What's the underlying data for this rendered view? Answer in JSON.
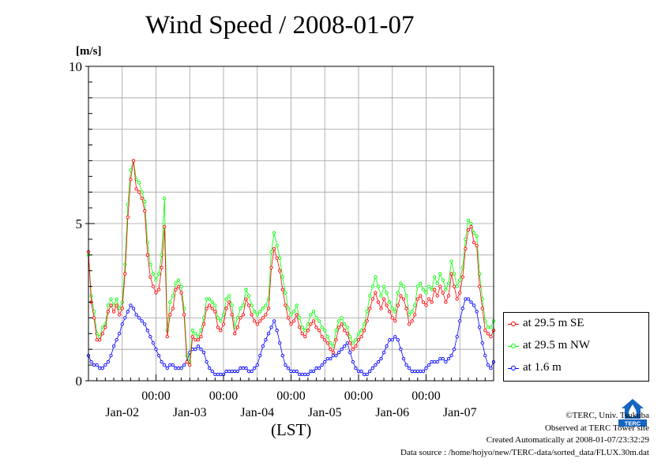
{
  "chart_data": {
    "type": "line",
    "title": "Wind Speed / 2008-01-07",
    "ylabel": "[m/s]",
    "xlabel": "(LST)",
    "ylim": [
      0,
      10
    ],
    "ytick_labels": [
      "0",
      "5",
      "10"
    ],
    "x_range_hours": [
      0,
      144
    ],
    "time_tick_labels": [
      "00:00",
      "00:00",
      "00:00",
      "00:00",
      "00:00"
    ],
    "date_labels": [
      "Jan-02",
      "Jan-03",
      "Jan-04",
      "Jan-05",
      "Jan-06",
      "Jan-07"
    ],
    "grid": true,
    "legend_position": "right",
    "series": [
      {
        "name": "at 29.5 m SE",
        "color": "#ff0000",
        "values": [
          4.1,
          2.5,
          2.0,
          1.3,
          1.3,
          1.5,
          1.7,
          2.2,
          2.4,
          2.2,
          2.4,
          2.1,
          2.3,
          3.4,
          5.2,
          6.4,
          7.0,
          6.1,
          6.0,
          5.8,
          5.4,
          4.0,
          3.3,
          3.0,
          2.8,
          2.9,
          3.6,
          4.9,
          1.4,
          2.1,
          2.3,
          2.9,
          3.0,
          2.8,
          2.1,
          0.6,
          0.5,
          1.4,
          1.3,
          1.3,
          1.4,
          1.8,
          2.3,
          2.4,
          2.3,
          2.2,
          1.7,
          1.6,
          1.8,
          2.3,
          2.5,
          2.1,
          1.5,
          1.7,
          2.0,
          2.1,
          2.6,
          2.4,
          2.1,
          1.9,
          1.8,
          1.9,
          2.0,
          2.1,
          2.3,
          3.6,
          4.2,
          3.9,
          3.5,
          2.9,
          2.4,
          2.0,
          1.8,
          1.9,
          2.1,
          1.7,
          1.5,
          1.4,
          1.6,
          1.8,
          1.9,
          1.7,
          1.6,
          1.4,
          1.3,
          1.2,
          1.0,
          0.9,
          1.3,
          1.7,
          1.8,
          1.6,
          1.5,
          1.2,
          1.0,
          1.1,
          1.3,
          1.4,
          1.6,
          1.9,
          2.3,
          2.6,
          2.8,
          2.5,
          2.3,
          2.6,
          2.4,
          2.2,
          2.0,
          1.9,
          2.4,
          2.7,
          2.6,
          2.3,
          1.8,
          1.9,
          2.1,
          2.6,
          2.7,
          2.5,
          2.4,
          2.6,
          2.5,
          2.9,
          2.7,
          3.0,
          2.8,
          2.5,
          2.7,
          3.4,
          3.0,
          2.6,
          2.8,
          3.3,
          4.2,
          4.8,
          4.9,
          4.4,
          4.3,
          3.0,
          2.3,
          1.6,
          1.5,
          1.4,
          1.6
        ]
      },
      {
        "name": "at 29.5 m NW",
        "color": "#00ff00",
        "values": [
          4.0,
          2.7,
          2.2,
          1.5,
          1.4,
          1.7,
          1.8,
          2.4,
          2.6,
          2.4,
          2.6,
          2.3,
          2.5,
          3.7,
          5.6,
          6.7,
          7.0,
          6.4,
          6.3,
          6.0,
          5.7,
          4.4,
          3.7,
          3.4,
          3.2,
          3.4,
          4.0,
          5.8,
          1.6,
          2.5,
          2.7,
          3.1,
          3.2,
          3.0,
          2.3,
          0.8,
          0.6,
          1.6,
          1.5,
          1.4,
          1.6,
          2.0,
          2.6,
          2.6,
          2.5,
          2.4,
          2.0,
          1.9,
          2.1,
          2.6,
          2.7,
          2.4,
          1.7,
          2.0,
          2.3,
          2.4,
          2.9,
          2.7,
          2.4,
          2.2,
          2.1,
          2.2,
          2.3,
          2.4,
          2.6,
          4.1,
          4.7,
          4.3,
          3.9,
          3.3,
          2.8,
          2.3,
          2.1,
          2.2,
          2.4,
          2.0,
          1.7,
          1.6,
          1.8,
          2.1,
          2.2,
          2.0,
          1.9,
          1.7,
          1.6,
          1.4,
          1.2,
          1.1,
          1.6,
          1.9,
          2.0,
          1.8,
          1.7,
          1.4,
          1.2,
          1.3,
          1.5,
          1.6,
          1.8,
          2.2,
          2.7,
          3.0,
          3.3,
          3.0,
          2.7,
          3.0,
          2.8,
          2.5,
          2.3,
          2.2,
          2.8,
          3.1,
          3.0,
          2.7,
          2.1,
          2.2,
          2.4,
          3.0,
          3.1,
          2.9,
          2.8,
          3.0,
          2.9,
          3.3,
          3.1,
          3.4,
          3.2,
          2.9,
          3.1,
          3.8,
          3.4,
          3.0,
          3.2,
          3.6,
          4.5,
          5.1,
          5.0,
          4.7,
          4.6,
          3.4,
          2.6,
          1.9,
          1.7,
          1.7,
          1.9
        ]
      },
      {
        "name": "at 1.6 m",
        "color": "#0000ff",
        "values": [
          0.8,
          0.6,
          0.5,
          0.5,
          0.4,
          0.4,
          0.5,
          0.6,
          0.8,
          1.1,
          1.3,
          1.5,
          1.8,
          2.0,
          2.2,
          2.4,
          2.3,
          2.1,
          2.0,
          1.9,
          1.8,
          1.6,
          1.4,
          1.2,
          1.0,
          0.8,
          0.6,
          0.5,
          0.4,
          0.5,
          0.5,
          0.4,
          0.4,
          0.4,
          0.5,
          0.6,
          0.9,
          1.0,
          1.0,
          1.1,
          1.0,
          0.9,
          0.6,
          0.4,
          0.3,
          0.2,
          0.2,
          0.2,
          0.2,
          0.3,
          0.3,
          0.3,
          0.3,
          0.3,
          0.4,
          0.4,
          0.4,
          0.3,
          0.3,
          0.4,
          0.5,
          0.8,
          1.1,
          1.3,
          1.5,
          1.7,
          1.9,
          1.6,
          1.2,
          0.8,
          0.5,
          0.4,
          0.3,
          0.3,
          0.3,
          0.2,
          0.2,
          0.2,
          0.2,
          0.3,
          0.3,
          0.4,
          0.4,
          0.5,
          0.6,
          0.7,
          0.7,
          0.8,
          0.8,
          0.9,
          1.0,
          1.1,
          1.2,
          0.9,
          0.6,
          0.4,
          0.3,
          0.3,
          0.2,
          0.2,
          0.3,
          0.4,
          0.5,
          0.6,
          0.7,
          0.9,
          1.1,
          1.3,
          1.3,
          1.4,
          1.3,
          1.0,
          0.7,
          0.5,
          0.4,
          0.3,
          0.3,
          0.3,
          0.3,
          0.3,
          0.4,
          0.5,
          0.6,
          0.6,
          0.6,
          0.7,
          0.7,
          0.6,
          0.7,
          0.8,
          1.0,
          1.4,
          1.9,
          2.3,
          2.6,
          2.6,
          2.5,
          2.4,
          2.2,
          1.7,
          1.2,
          0.8,
          0.5,
          0.4,
          0.6
        ]
      }
    ]
  },
  "credits": {
    "copyright": "©TERC, Univ. Tsukuba",
    "observed": "Observed at TERC Tower site",
    "created": "Created Automatically at 2008-01-07/23:32:29",
    "source": "Data source : /home/hojyo/new/TERC-data/sorted_data/FLUX.30m.dat"
  },
  "logo": {
    "label": "TERC"
  }
}
